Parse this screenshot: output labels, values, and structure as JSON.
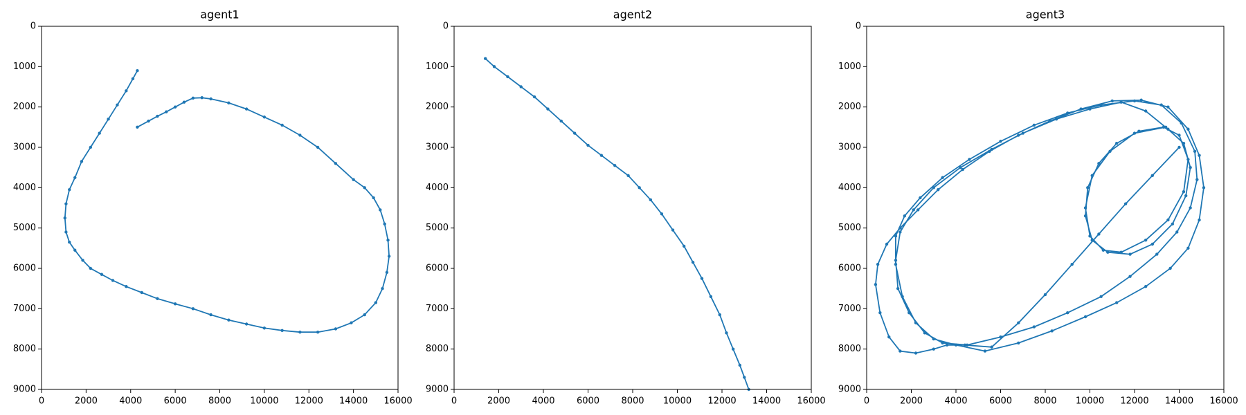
{
  "chart_data": [
    {
      "type": "line",
      "title": "agent1",
      "color": "#1f77b4",
      "xlim": [
        0,
        16000
      ],
      "ylim": [
        0,
        9000
      ],
      "y_inverted": true,
      "xticks": [
        0,
        2000,
        4000,
        6000,
        8000,
        10000,
        12000,
        14000,
        16000
      ],
      "yticks": [
        0,
        1000,
        2000,
        3000,
        4000,
        5000,
        6000,
        7000,
        8000,
        9000
      ],
      "x": [
        4300,
        4100,
        3800,
        3400,
        3000,
        2600,
        2200,
        1800,
        1500,
        1250,
        1100,
        1050,
        1100,
        1250,
        1500,
        1850,
        2200,
        2700,
        3200,
        3800,
        4500,
        5200,
        6000,
        6800,
        7600,
        8400,
        9200,
        10000,
        10800,
        11600,
        12400,
        13200,
        13900,
        14500,
        15000,
        15300,
        15500,
        15600,
        15550,
        15400,
        15200,
        14900,
        14500,
        14000,
        13200,
        12400,
        11600,
        10800,
        10000,
        9200,
        8400,
        7600,
        7200,
        6800,
        6400,
        6000,
        5600,
        5200,
        4800,
        4300
      ],
      "values": [
        1100,
        1300,
        1600,
        1950,
        2300,
        2650,
        3000,
        3350,
        3750,
        4050,
        4400,
        4750,
        5100,
        5350,
        5550,
        5800,
        6000,
        6150,
        6300,
        6450,
        6600,
        6750,
        6880,
        7000,
        7150,
        7280,
        7380,
        7480,
        7540,
        7580,
        7580,
        7500,
        7350,
        7150,
        6850,
        6500,
        6100,
        5700,
        5300,
        4900,
        4550,
        4250,
        4000,
        3800,
        3400,
        3000,
        2700,
        2450,
        2250,
        2050,
        1900,
        1800,
        1770,
        1780,
        1880,
        2000,
        2120,
        2230,
        2350,
        2500
      ]
    },
    {
      "type": "line",
      "title": "agent2",
      "color": "#1f77b4",
      "xlim": [
        0,
        16000
      ],
      "ylim": [
        0,
        9000
      ],
      "y_inverted": true,
      "xticks": [
        0,
        2000,
        4000,
        6000,
        8000,
        10000,
        12000,
        14000,
        16000
      ],
      "yticks": [
        0,
        1000,
        2000,
        3000,
        4000,
        5000,
        6000,
        7000,
        8000,
        9000
      ],
      "x": [
        1400,
        1800,
        2400,
        3000,
        3600,
        4200,
        4800,
        5400,
        6000,
        6600,
        7200,
        7800,
        8300,
        8800,
        9300,
        9800,
        10300,
        10700,
        11100,
        11500,
        11900,
        12200,
        12500,
        12800,
        13000,
        13200
      ],
      "values": [
        800,
        1000,
        1250,
        1500,
        1750,
        2050,
        2350,
        2650,
        2950,
        3200,
        3450,
        3700,
        4000,
        4300,
        4650,
        5050,
        5450,
        5850,
        6250,
        6700,
        7150,
        7600,
        8000,
        8400,
        8700,
        9000
      ]
    },
    {
      "type": "line",
      "title": "agent3",
      "color": "#1f77b4",
      "xlim": [
        0,
        16000
      ],
      "ylim": [
        0,
        9000
      ],
      "y_inverted": true,
      "xticks": [
        0,
        2000,
        4000,
        6000,
        8000,
        10000,
        12000,
        14000,
        16000
      ],
      "yticks": [
        0,
        1000,
        2000,
        3000,
        4000,
        5000,
        6000,
        7000,
        8000,
        9000
      ],
      "x": [
        14000,
        12800,
        11600,
        10400,
        9200,
        8000,
        6800,
        5600,
        4400,
        3600,
        3000,
        2200,
        1500,
        1000,
        600,
        400,
        500,
        900,
        1500,
        2300,
        3200,
        4300,
        5500,
        6800,
        8200,
        9600,
        11000,
        12300,
        13500,
        14400,
        14900,
        15100,
        14900,
        14400,
        13600,
        12500,
        11200,
        9800,
        8300,
        6800,
        5300,
        4000,
        3000,
        2200,
        1600,
        1300,
        1300,
        1700,
        2400,
        3400,
        4600,
        6000,
        7500,
        9000,
        10500,
        12000,
        13200,
        14100,
        14700,
        14800,
        14500,
        13900,
        13000,
        11800,
        10500,
        9000,
        7500,
        6000,
        4500,
        3400,
        2600,
        1900,
        1400,
        1300,
        1500,
        2100,
        3000,
        4200,
        5600,
        7000,
        8500,
        10000,
        11400,
        12500,
        13500,
        14200,
        14500,
        14300,
        13700,
        12800,
        11800,
        10800,
        10100,
        9800,
        9900,
        10400,
        11200,
        12200,
        13300,
        14000,
        14400,
        14200,
        13500,
        12500,
        11400,
        10600,
        10000,
        9800,
        10100,
        10900,
        12000,
        13400
      ],
      "values": [
        3000,
        3700,
        4400,
        5150,
        5900,
        6650,
        7350,
        7950,
        7900,
        7900,
        8000,
        8100,
        8050,
        7700,
        7100,
        6400,
        5900,
        5400,
        5000,
        4550,
        4050,
        3550,
        3100,
        2700,
        2350,
        2050,
        1850,
        1830,
        2000,
        2550,
        3200,
        4000,
        4800,
        5500,
        6000,
        6450,
        6850,
        7200,
        7550,
        7850,
        8050,
        7900,
        7750,
        7350,
        6700,
        5900,
        5200,
        4700,
        4250,
        3750,
        3300,
        2850,
        2450,
        2150,
        1950,
        1850,
        1950,
        2400,
        3100,
        3800,
        4500,
        5100,
        5650,
        6200,
        6700,
        7100,
        7450,
        7700,
        7900,
        7850,
        7600,
        7100,
        6500,
        5800,
        5100,
        4550,
        4000,
        3500,
        3050,
        2650,
        2300,
        2050,
        1880,
        2100,
        2550,
        2900,
        3500,
        4200,
        4900,
        5400,
        5650,
        5600,
        5300,
        4700,
        4000,
        3400,
        2900,
        2600,
        2500,
        2700,
        3300,
        4100,
        4800,
        5300,
        5600,
        5550,
        5200,
        4500,
        3700,
        3100,
        2650,
        2500
      ]
    }
  ]
}
